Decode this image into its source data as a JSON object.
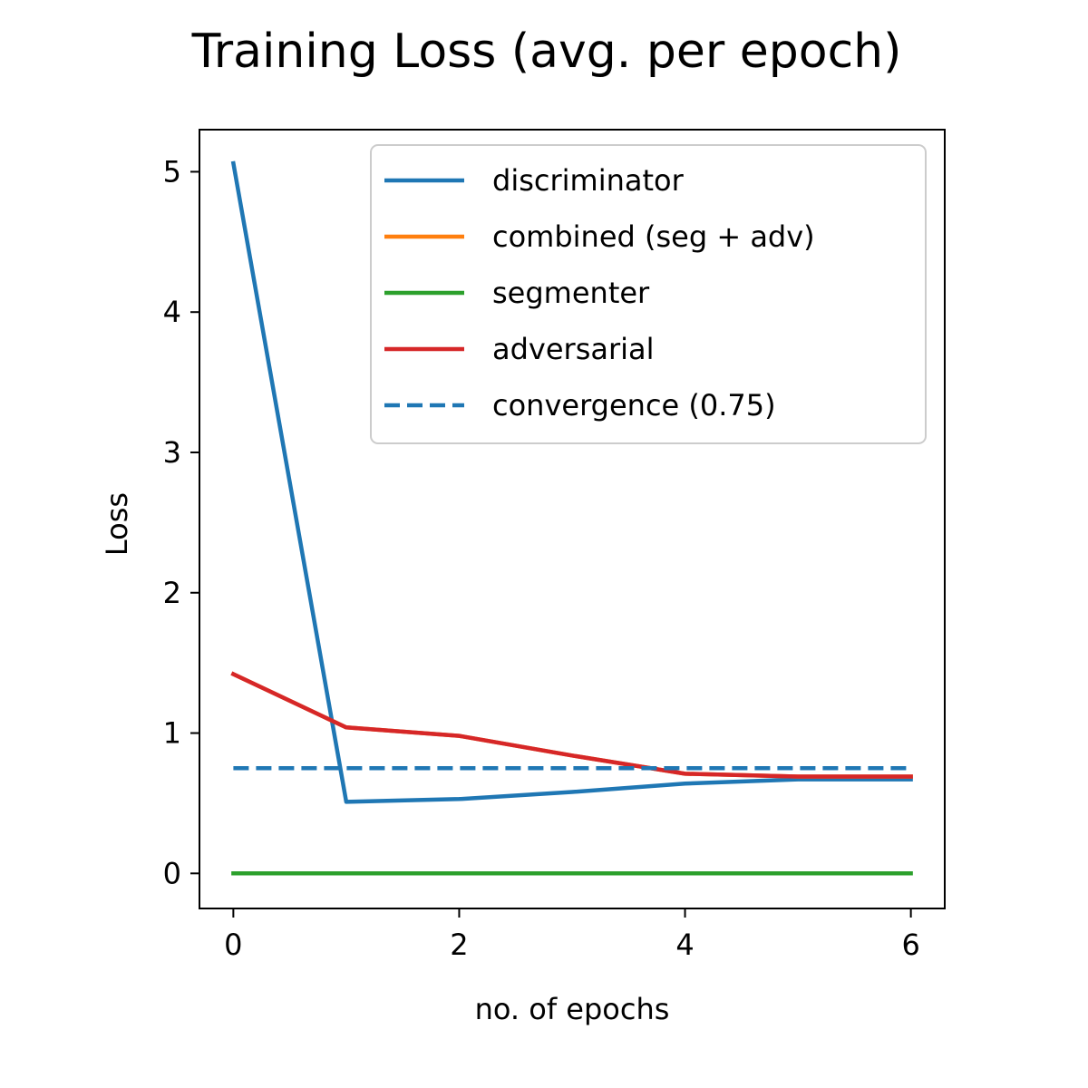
{
  "chart_data": {
    "type": "line",
    "title": "Training Loss (avg. per epoch)",
    "xlabel": "no. of epochs",
    "ylabel": "Loss",
    "xlim": [
      -0.3,
      6.3
    ],
    "ylim": [
      -0.25,
      5.3
    ],
    "xticks": [
      0,
      2,
      4,
      6
    ],
    "yticks": [
      0,
      1,
      2,
      3,
      4,
      5
    ],
    "grid": false,
    "legend_position": "top-right",
    "x": [
      0,
      1,
      2,
      3,
      4,
      5,
      6
    ],
    "series": [
      {
        "name": "discriminator",
        "color": "#1f77b4",
        "style": "solid",
        "values": [
          5.06,
          0.51,
          0.53,
          0.58,
          0.64,
          0.67,
          0.67
        ]
      },
      {
        "name": "combined (seg + adv)",
        "color": "#ff7f0e",
        "style": "solid",
        "values": [
          1.42,
          1.04,
          0.98,
          0.84,
          0.71,
          0.69,
          0.69
        ]
      },
      {
        "name": "segmenter",
        "color": "#2ca02c",
        "style": "solid",
        "values": [
          0.0,
          0.0,
          0.0,
          0.0,
          0.0,
          0.0,
          0.0
        ]
      },
      {
        "name": "adversarial",
        "color": "#d62728",
        "style": "solid",
        "values": [
          1.42,
          1.04,
          0.98,
          0.84,
          0.71,
          0.69,
          0.69
        ]
      },
      {
        "name": "convergence (0.75)",
        "color": "#1f77b4",
        "style": "dashed",
        "values": [
          0.75,
          0.75,
          0.75,
          0.75,
          0.75,
          0.75,
          0.75
        ]
      }
    ]
  }
}
